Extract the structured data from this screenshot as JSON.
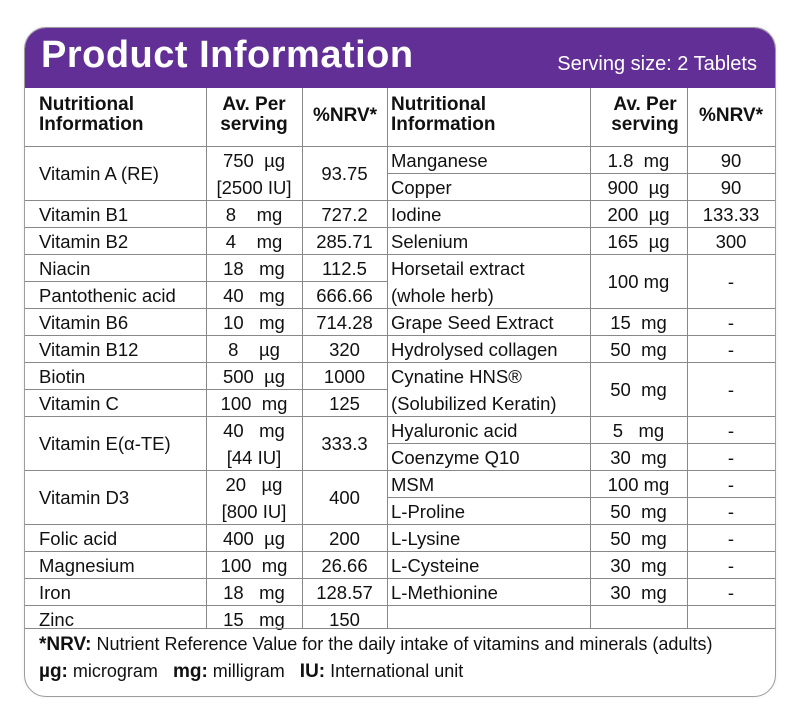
{
  "header": {
    "title": "Product Information",
    "serving": "Serving size: 2 Tablets"
  },
  "columns": {
    "name": "Nutritional Information",
    "serving": "Av. Per serving",
    "nrv": "%NRV*"
  },
  "left_rows": [
    {
      "name": "Vitamin A (RE)",
      "serving": [
        "750  µg",
        "[2500 IU]"
      ],
      "nrv": "93.75",
      "span": 2
    },
    {
      "name": "Vitamin B1",
      "serving": [
        "8    mg"
      ],
      "nrv": "727.2",
      "span": 1
    },
    {
      "name": "Vitamin B2",
      "serving": [
        "4    mg"
      ],
      "nrv": "285.71",
      "span": 1
    },
    {
      "name": "Niacin",
      "serving": [
        "18   mg"
      ],
      "nrv": "112.5",
      "span": 1
    },
    {
      "name": "Pantothenic acid",
      "serving": [
        "40   mg"
      ],
      "nrv": "666.66",
      "span": 1
    },
    {
      "name": "Vitamin B6",
      "serving": [
        "10   mg"
      ],
      "nrv": "714.28",
      "span": 1
    },
    {
      "name": "Vitamin B12",
      "serving": [
        "8    µg"
      ],
      "nrv": "320",
      "span": 1
    },
    {
      "name": "Biotin",
      "serving": [
        "500  µg"
      ],
      "nrv": "1000",
      "span": 1
    },
    {
      "name": "Vitamin C",
      "serving": [
        "100  mg"
      ],
      "nrv": "125",
      "span": 1
    },
    {
      "name": "Vitamin E(α-TE)",
      "serving": [
        "40   mg",
        "[44 IU]"
      ],
      "nrv": "333.3",
      "span": 2
    },
    {
      "name": "Vitamin D3",
      "serving": [
        "20   µg",
        "[800 IU]"
      ],
      "nrv": "400",
      "span": 2
    },
    {
      "name": "Folic acid",
      "serving": [
        "400  µg"
      ],
      "nrv": "200",
      "span": 1
    },
    {
      "name": "Magnesium",
      "serving": [
        "100  mg"
      ],
      "nrv": "26.66",
      "span": 1
    },
    {
      "name": "Iron",
      "serving": [
        "18   mg"
      ],
      "nrv": "128.57",
      "span": 1
    },
    {
      "name": "Zinc",
      "serving": [
        "15   mg"
      ],
      "nrv": "150",
      "span": 1
    }
  ],
  "right_rows": [
    {
      "name": [
        "Manganese"
      ],
      "serving": "1.8  mg",
      "nrv": "90",
      "span": 1
    },
    {
      "name": [
        "Copper"
      ],
      "serving": "900  µg",
      "nrv": "90",
      "span": 1
    },
    {
      "name": [
        "Iodine"
      ],
      "serving": "200  µg",
      "nrv": "133.33",
      "span": 1
    },
    {
      "name": [
        "Selenium"
      ],
      "serving": "165  µg",
      "nrv": "300",
      "span": 1
    },
    {
      "name": [
        "Horsetail extract",
        "(whole herb)"
      ],
      "serving": "100 mg",
      "nrv": "-",
      "span": 2
    },
    {
      "name": [
        "Grape Seed Extract"
      ],
      "serving": "15  mg",
      "nrv": "-",
      "span": 1
    },
    {
      "name": [
        "Hydrolysed collagen"
      ],
      "serving": "50  mg",
      "nrv": "-",
      "span": 1
    },
    {
      "name": [
        "Cynatine HNS®",
        "(Solubilized Keratin)"
      ],
      "serving": "50  mg",
      "nrv": "-",
      "span": 2
    },
    {
      "name": [
        "Hyaluronic acid"
      ],
      "serving": "5   mg",
      "nrv": "-",
      "span": 1
    },
    {
      "name": [
        "Coenzyme Q10"
      ],
      "serving": "30  mg",
      "nrv": "-",
      "span": 1
    },
    {
      "name": [
        "MSM"
      ],
      "serving": "100 mg",
      "nrv": "-",
      "span": 1
    },
    {
      "name": [
        "L-Proline"
      ],
      "serving": "50  mg",
      "nrv": "-",
      "span": 1
    },
    {
      "name": [
        "L-Lysine"
      ],
      "serving": "50  mg",
      "nrv": "-",
      "span": 1
    },
    {
      "name": [
        "L-Cysteine"
      ],
      "serving": "30  mg",
      "nrv": "-",
      "span": 1
    },
    {
      "name": [
        "L-Methionine"
      ],
      "serving": "30  mg",
      "nrv": "-",
      "span": 1
    },
    {
      "name": [
        ""
      ],
      "serving": "",
      "nrv": "",
      "span": 1
    }
  ],
  "footer": {
    "nrv_key": "*NRV:",
    "nrv_text": "Nutrient Reference Value for the daily intake of vitamins and minerals (adults)",
    "ug_key": "µg:",
    "ug_text": "microgram",
    "mg_key": "mg:",
    "mg_text": "milligram",
    "iu_key": "IU:",
    "iu_text": "International unit"
  }
}
